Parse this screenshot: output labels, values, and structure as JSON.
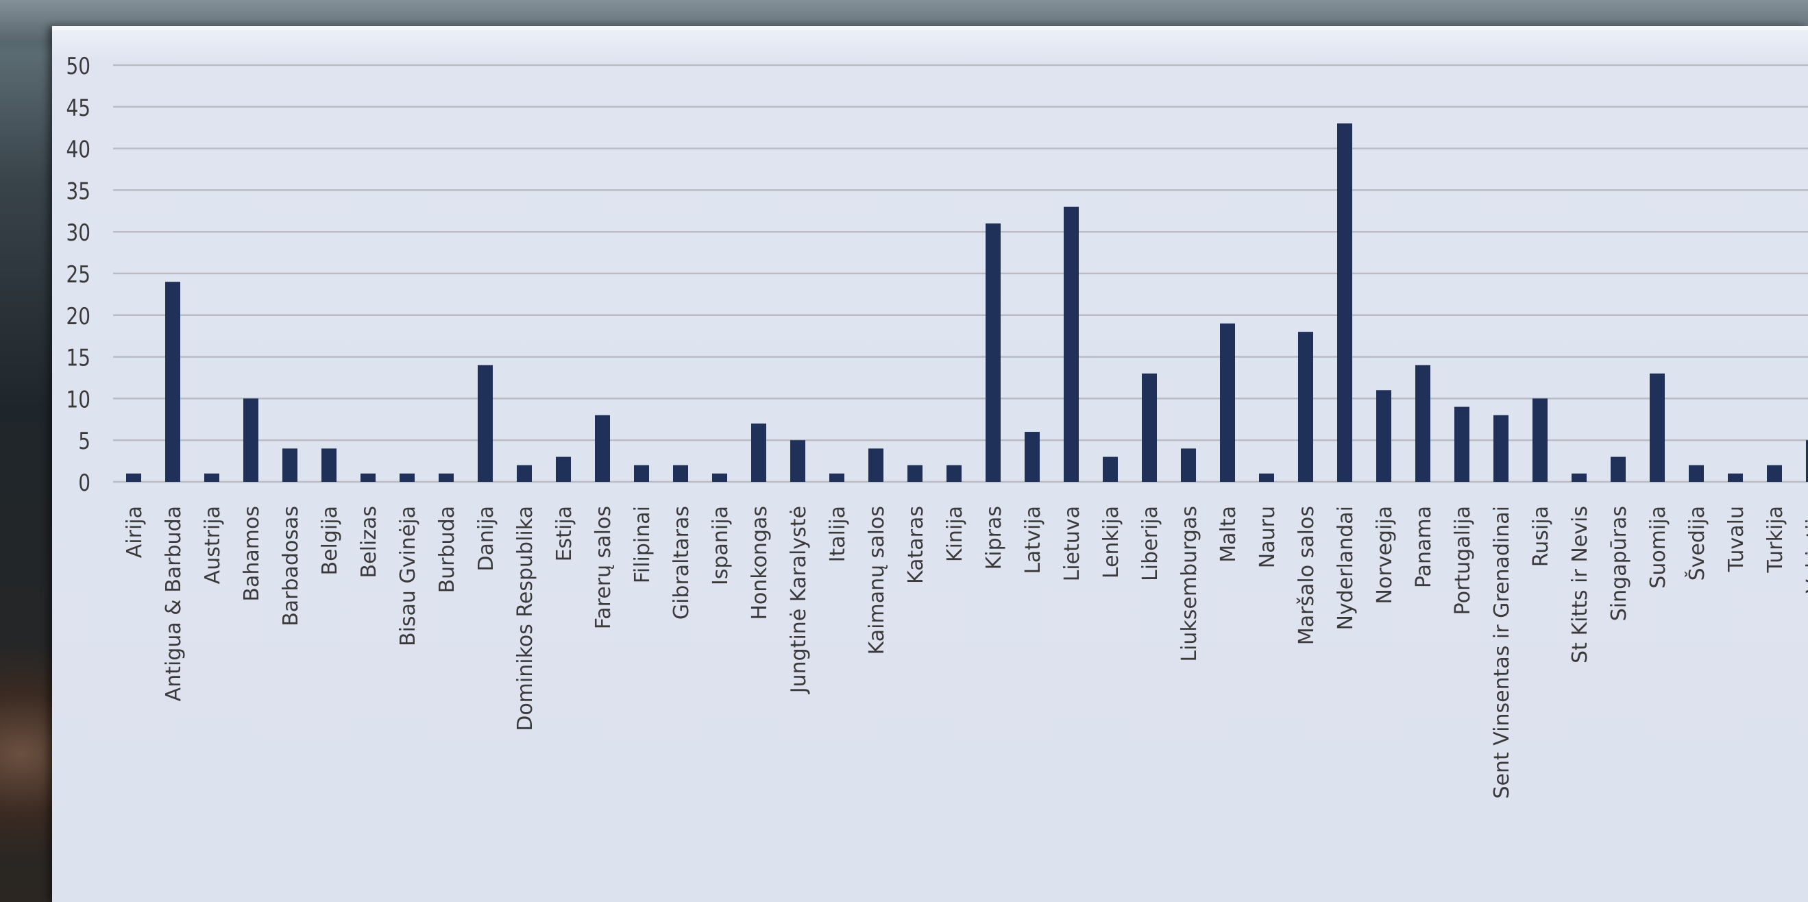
{
  "colors": {
    "bar": "#1f3158",
    "grid": "#b9bcc4",
    "panel": "#dde2ef",
    "label": "#3a3a3a"
  },
  "chart_data": {
    "type": "bar",
    "title": "",
    "xlabel": "",
    "ylabel": "",
    "ylim": [
      0,
      50
    ],
    "yticks": [
      0,
      5,
      10,
      15,
      20,
      25,
      30,
      35,
      40,
      45,
      50
    ],
    "grid": true,
    "legend": "none",
    "categories": [
      "Airija",
      "Antigua & Barbuda",
      "Austrija",
      "Bahamos",
      "Barbadosas",
      "Belgija",
      "Belizas",
      "Bisau Gvinėja",
      "Burbuda",
      "Danija",
      "Dominikos Respublika",
      "Estija",
      "Farerų salos",
      "Filipinai",
      "Gibraltaras",
      "Ispanija",
      "Honkongas",
      "Jungtinė Karalystė",
      "Italija",
      "Kaimanų salos",
      "Kataras",
      "Kinija",
      "Kipras",
      "Latvija",
      "Lietuva",
      "Lenkija",
      "Liberija",
      "Liuksemburgas",
      "Malta",
      "Nauru",
      "Maršalo salos",
      "Nyderlandai",
      "Norvegija",
      "Panama",
      "Portugalija",
      "Sent Vinsentas ir Grenadinai",
      "Rusija",
      "St Kitts ir Nevis",
      "Singapūras",
      "Suomija",
      "Švedija",
      "Tuvalu",
      "Turkija",
      "Vokietija"
    ],
    "values": [
      1,
      24,
      1,
      10,
      4,
      4,
      1,
      1,
      1,
      14,
      2,
      3,
      8,
      2,
      2,
      1,
      7,
      5,
      1,
      4,
      2,
      2,
      31,
      6,
      33,
      3,
      13,
      4,
      19,
      1,
      18,
      43,
      11,
      14,
      9,
      8,
      10,
      1,
      3,
      13,
      2,
      1,
      2,
      5
    ]
  }
}
